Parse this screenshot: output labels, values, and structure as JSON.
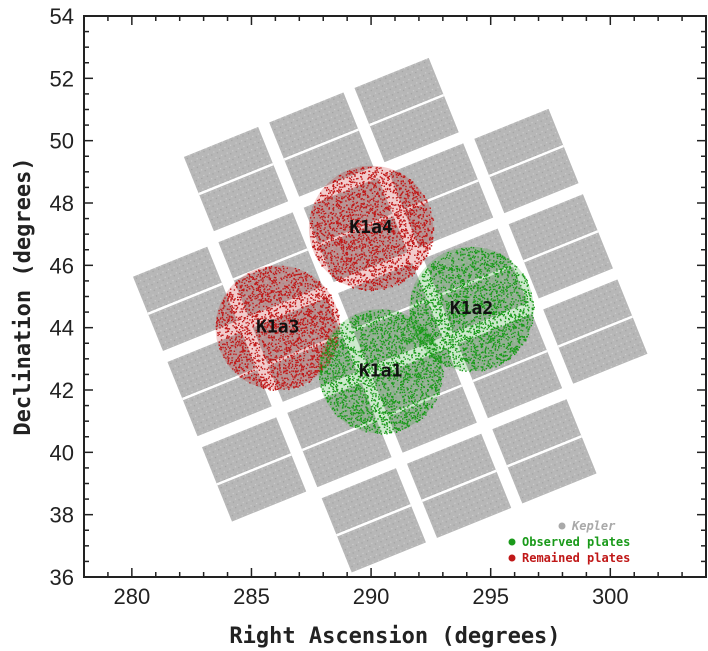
{
  "chart_data": {
    "type": "scatter",
    "xlabel": "Right Ascension (degrees)",
    "ylabel": "Declination (degrees)",
    "xlim": [
      278,
      304
    ],
    "ylim": [
      36,
      54
    ],
    "xticks": [
      280,
      285,
      290,
      295,
      300
    ],
    "yticks": [
      36,
      38,
      40,
      42,
      44,
      46,
      48,
      50,
      52,
      54
    ],
    "legend_position": "bottom-right",
    "series": [
      {
        "name": "Kepler",
        "color": "#a9a9a9",
        "style": "italic"
      },
      {
        "name": "Observed plates",
        "color": "#1a9a1a"
      },
      {
        "name": "Remained plates",
        "color": "#c01818"
      }
    ],
    "plates": [
      {
        "label": "K1a1",
        "status": "observed",
        "ra": 290.4,
        "dec": 42.6,
        "radius": 2.6
      },
      {
        "label": "K1a2",
        "status": "observed",
        "ra": 294.2,
        "dec": 44.6,
        "radius": 2.6
      },
      {
        "label": "K1a3",
        "status": "remained",
        "ra": 286.1,
        "dec": 44.0,
        "radius": 2.6
      },
      {
        "label": "K1a4",
        "status": "remained",
        "ra": 290.0,
        "dec": 47.2,
        "radius": 2.6
      }
    ]
  }
}
